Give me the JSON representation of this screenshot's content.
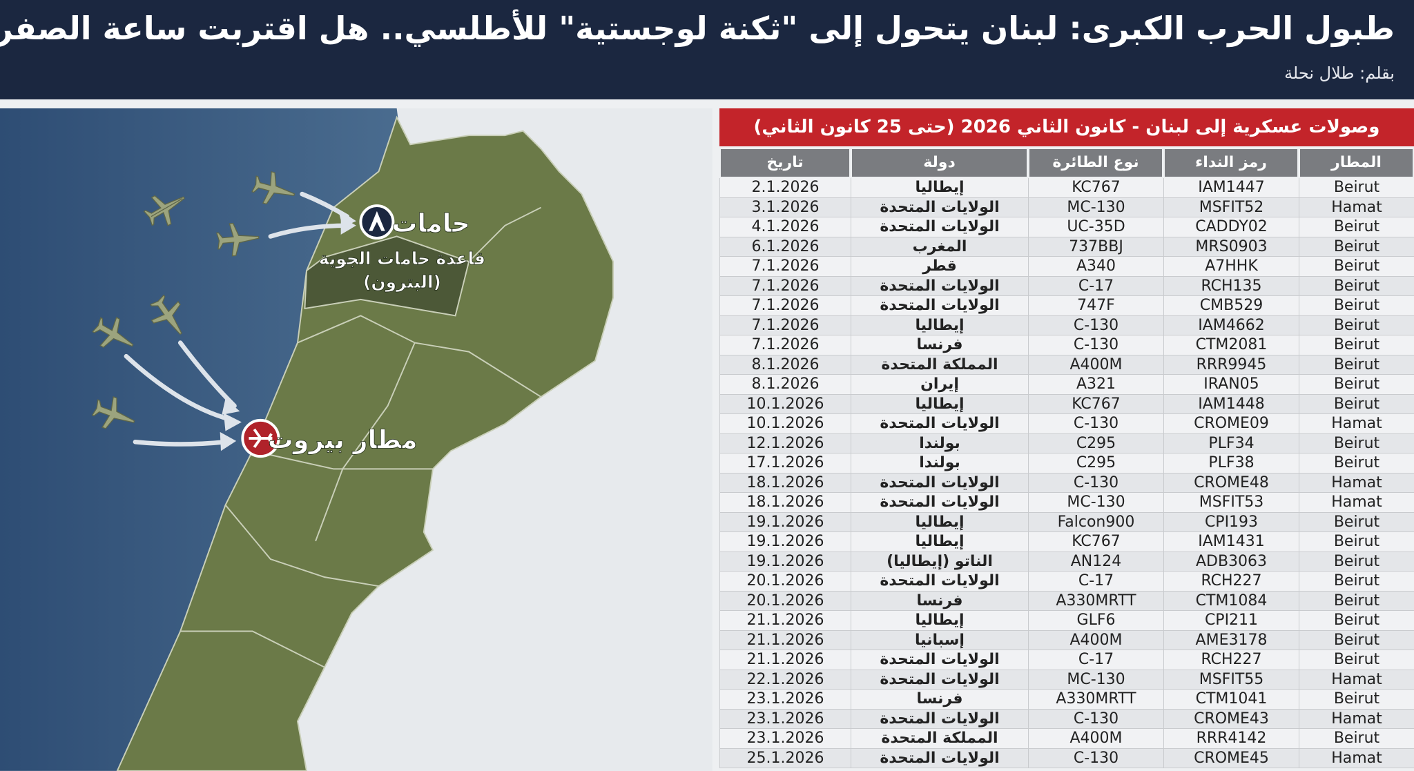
{
  "header": {
    "title": "طبول الحرب الكبرى: لبنان يتحول إلى \"ثكنة لوجستية\" للأطلسي.. هل اقتربت ساعة الصفر؟",
    "author": "بقلم: طلال نحلة"
  },
  "map": {
    "hamat": "حامات",
    "hamat_base": "قاعدة حامات الجوية",
    "batroun": "(البترون)",
    "beirut_airport": "مطار بيروت"
  },
  "table": {
    "title": "وصولات عسكرية إلى لبنان - كانون الثاني 2026 (حتى 25 كانون الثاني)",
    "columns": [
      "المطار",
      "رمز النداء",
      "نوع الطائرة",
      "دولة",
      "تاريخ"
    ],
    "rows": [
      [
        "Beirut",
        "IAM1447",
        "KC767",
        "إيطاليا",
        "2.1.2026"
      ],
      [
        "Hamat",
        "MSFIT52",
        "MC-130",
        "الولايات المتحدة",
        "3.1.2026"
      ],
      [
        "Beirut",
        "CADDY02",
        "UC-35D",
        "الولايات المتحدة",
        "4.1.2026"
      ],
      [
        "Beirut",
        "MRS0903",
        "737BBJ",
        "المغرب",
        "6.1.2026"
      ],
      [
        "Beirut",
        "A7HHK",
        "A340",
        "قطر",
        "7.1.2026"
      ],
      [
        "Beirut",
        "RCH135",
        "C-17",
        "الولايات المتحدة",
        "7.1.2026"
      ],
      [
        "Beirut",
        "CMB529",
        "747F",
        "الولايات المتحدة",
        "7.1.2026"
      ],
      [
        "Beirut",
        "IAM4662",
        "C-130",
        "إيطاليا",
        "7.1.2026"
      ],
      [
        "Beirut",
        "CTM2081",
        "C-130",
        "فرنسا",
        "7.1.2026"
      ],
      [
        "Beirut",
        "RRR9945",
        "A400M",
        "المملكة المتحدة",
        "8.1.2026"
      ],
      [
        "Beirut",
        "IRAN05",
        "A321",
        "إيران",
        "8.1.2026"
      ],
      [
        "Beirut",
        "IAM1448",
        "KC767",
        "إيطاليا",
        "10.1.2026"
      ],
      [
        "Hamat",
        "CROME09",
        "C-130",
        "الولايات المتحدة",
        "10.1.2026"
      ],
      [
        "Beirut",
        "PLF34",
        "C295",
        "بولندا",
        "12.1.2026"
      ],
      [
        "Beirut",
        "PLF38",
        "C295",
        "بولندا",
        "17.1.2026"
      ],
      [
        "Hamat",
        "CROME48",
        "C-130",
        "الولايات المتحدة",
        "18.1.2026"
      ],
      [
        "Hamat",
        "MSFIT53",
        "MC-130",
        "الولايات المتحدة",
        "18.1.2026"
      ],
      [
        "Beirut",
        "CPI193",
        "Falcon900",
        "إيطاليا",
        "19.1.2026"
      ],
      [
        "Beirut",
        "IAM1431",
        "KC767",
        "إيطاليا",
        "19.1.2026"
      ],
      [
        "Beirut",
        "ADB3063",
        "AN124",
        "الناتو (إيطاليا)",
        "19.1.2026"
      ],
      [
        "Beirut",
        "RCH227",
        "C-17",
        "الولايات المتحدة",
        "20.1.2026"
      ],
      [
        "Beirut",
        "CTM1084",
        "A330MRTT",
        "فرنسا",
        "20.1.2026"
      ],
      [
        "Beirut",
        "CPI211",
        "GLF6",
        "إيطاليا",
        "21.1.2026"
      ],
      [
        "Beirut",
        "AME3178",
        "A400M",
        "إسبانيا",
        "21.1.2026"
      ],
      [
        "Beirut",
        "RCH227",
        "C-17",
        "الولايات المتحدة",
        "21.1.2026"
      ],
      [
        "Hamat",
        "MSFIT55",
        "MC-130",
        "الولايات المتحدة",
        "22.1.2026"
      ],
      [
        "Beirut",
        "CTM1041",
        "A330MRTT",
        "فرنسا",
        "23.1.2026"
      ],
      [
        "Hamat",
        "CROME43",
        "C-130",
        "الولايات المتحدة",
        "23.1.2026"
      ],
      [
        "Beirut",
        "RRR4142",
        "A400M",
        "المملكة المتحدة",
        "23.1.2026"
      ],
      [
        "Hamat",
        "CROME45",
        "C-130",
        "الولايات المتحدة",
        "25.1.2026"
      ]
    ]
  }
}
